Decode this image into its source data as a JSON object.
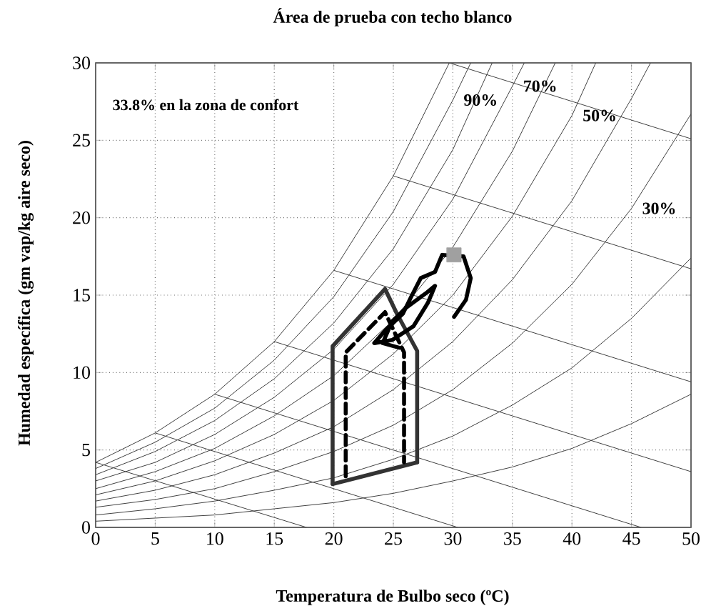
{
  "chart_data": {
    "type": "line",
    "title": "Área de prueba con techo blanco",
    "xlabel": "Temperatura de Bulbo seco (ºC)",
    "ylabel": "Humedad específica  (gm vap/kg aire seco)",
    "xlim": [
      0,
      50
    ],
    "ylim": [
      0,
      30
    ],
    "xticks": [
      0,
      5,
      10,
      15,
      20,
      25,
      30,
      35,
      40,
      45,
      50
    ],
    "yticks": [
      0,
      5,
      10,
      15,
      20,
      25,
      30
    ],
    "grid": true,
    "annotations": [
      "33.8% en la zona de confort",
      {
        "text": "90%",
        "x": 30,
        "y": 27.6
      },
      {
        "text": "70%",
        "x": 35,
        "y": 28.5
      },
      {
        "text": "50%",
        "x": 40,
        "y": 26.6
      },
      {
        "text": "30%",
        "x": 45,
        "y": 20.6
      }
    ],
    "series": [
      {
        "color": "#404040",
        "x": [
          0,
          5,
          10,
          15,
          20,
          25,
          29.7
        ],
        "values": [
          4.2,
          6.1,
          8.6,
          12.0,
          16.6,
          22.7,
          30
        ]
      },
      {
        "color": "#404040",
        "x": [
          0,
          5,
          10,
          15,
          20,
          25,
          30,
          31.5
        ],
        "values": [
          3.8,
          5.5,
          7.7,
          10.8,
          14.9,
          20.4,
          27.6,
          30
        ]
      },
      {
        "color": "#404040",
        "x": [
          0,
          5,
          10,
          15,
          20,
          25,
          30,
          33.3
        ],
        "values": [
          3.4,
          4.9,
          6.9,
          9.6,
          13.2,
          18.0,
          24.4,
          30
        ]
      },
      {
        "color": "#404040",
        "x": [
          0,
          5,
          10,
          15,
          20,
          25,
          30,
          35,
          36
        ],
        "values": [
          3.0,
          4.2,
          6.0,
          8.4,
          11.5,
          15.7,
          21.2,
          28.5,
          30
        ]
      },
      {
        "color": "#404040",
        "x": [
          0,
          5,
          10,
          15,
          20,
          25,
          30,
          35,
          38.6
        ],
        "values": [
          2.5,
          3.6,
          5.1,
          7.2,
          9.8,
          13.4,
          18.1,
          24.3,
          30
        ]
      },
      {
        "color": "#404040",
        "x": [
          0,
          5,
          10,
          15,
          20,
          25,
          30,
          35,
          40,
          42
        ],
        "values": [
          2.1,
          3.0,
          4.3,
          6.0,
          8.2,
          11.2,
          15.0,
          20.1,
          26.6,
          30
        ]
      },
      {
        "color": "#404040",
        "x": [
          0,
          5,
          10,
          15,
          20,
          25,
          30,
          35,
          40,
          45,
          46.6
        ],
        "values": [
          1.7,
          2.4,
          3.4,
          4.8,
          6.5,
          8.9,
          12.0,
          16.0,
          21.1,
          27.7,
          30
        ]
      },
      {
        "color": "#404040",
        "x": [
          0,
          5,
          10,
          15,
          20,
          25,
          30,
          35,
          40,
          45,
          50
        ],
        "values": [
          1.3,
          1.8,
          2.5,
          3.6,
          4.9,
          6.6,
          8.9,
          11.9,
          15.7,
          20.6,
          26.7
        ]
      },
      {
        "color": "#404040",
        "x": [
          0,
          5,
          10,
          15,
          20,
          25,
          30,
          35,
          40,
          45,
          50
        ],
        "values": [
          0.8,
          1.2,
          1.7,
          2.4,
          3.2,
          4.4,
          5.9,
          7.9,
          10.3,
          13.5,
          17.4
        ]
      },
      {
        "color": "#404040",
        "x": [
          0,
          5,
          10,
          15,
          20,
          25,
          30,
          35,
          40,
          45,
          50
        ],
        "values": [
          0.4,
          0.6,
          0.8,
          1.2,
          1.6,
          2.2,
          3.0,
          3.9,
          5.1,
          6.7,
          8.6
        ]
      },
      {
        "color": "#404040",
        "x": [
          0,
          17.7
        ],
        "values": [
          4.2,
          0
        ]
      },
      {
        "color": "#404040",
        "x": [
          5,
          30.4
        ],
        "values": [
          6.1,
          0
        ]
      },
      {
        "color": "#404040",
        "x": [
          10,
          45.8
        ],
        "values": [
          8.6,
          0
        ]
      },
      {
        "color": "#404040",
        "x": [
          15,
          50
        ],
        "values": [
          12.0,
          3.6
        ]
      },
      {
        "color": "#404040",
        "x": [
          20,
          50
        ],
        "values": [
          16.6,
          9.4
        ]
      },
      {
        "color": "#404040",
        "x": [
          25,
          50
        ],
        "values": [
          22.7,
          16.7
        ]
      },
      {
        "color": "#404040",
        "x": [
          29.7,
          50
        ],
        "values": [
          30,
          25.1
        ]
      },
      {
        "color": "#333333",
        "x": [
          19.9,
          19.9,
          24.3,
          25.3,
          27,
          27
        ],
        "values": [
          2.8,
          11.7,
          15.4,
          13.8,
          11.4,
          4.2
        ]
      },
      {
        "color": "#333333",
        "x": [
          19.9,
          27
        ],
        "values": [
          2.8,
          4.2
        ]
      },
      {
        "color": "#000000",
        "line_style": "dashed",
        "x": [
          21,
          21,
          24.3,
          25.9,
          25.9
        ],
        "values": [
          3.3,
          11.3,
          13.9,
          11.3,
          4.2
        ]
      },
      {
        "color": "#000000",
        "x": [
          30.1,
          31.1,
          31.5,
          30.9,
          29.1,
          28.5,
          27.3,
          26.5,
          25.8,
          24.3,
          23.4,
          24.9,
          26.7,
          27.9,
          28.5,
          27.7,
          26.1,
          24.9,
          24.1,
          25.5
        ],
        "values": [
          13.6,
          14.7,
          16.1,
          17.5,
          17.6,
          16.5,
          16.1,
          14.9,
          13.8,
          12.7,
          11.9,
          12.1,
          13.0,
          14.5,
          15.6,
          15.1,
          14.2,
          13.3,
          11.9,
          11.6
        ]
      },
      {
        "type": "scatter",
        "marker": "square",
        "color": "#a0a0a0",
        "x": [
          30.1
        ],
        "values": [
          17.6
        ]
      }
    ]
  }
}
